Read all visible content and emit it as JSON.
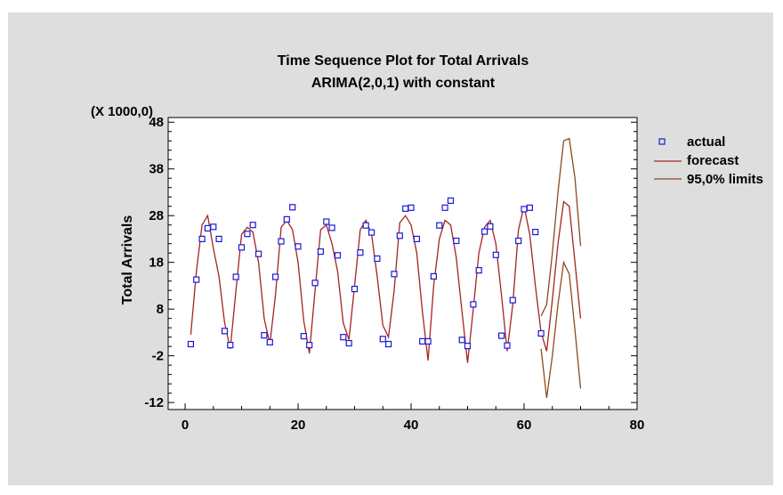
{
  "chart_data": {
    "type": "line",
    "title": "Time Sequence Plot for Total Arrivals",
    "subtitle": "ARIMA(2,0,1) with constant",
    "ylabel": "Total Arrivals",
    "y_multiplier": "(X 1000,0)",
    "xlim": [
      -3,
      80
    ],
    "ylim": [
      -13.5,
      49
    ],
    "x_ticks": [
      0,
      20,
      40,
      60,
      80
    ],
    "x_tick_labels": [
      "0",
      "20",
      "40",
      "60",
      "80"
    ],
    "y_ticks": [
      -12,
      -2,
      8,
      18,
      28,
      38,
      48
    ],
    "y_tick_labels": [
      "-12",
      "-2",
      "8",
      "18",
      "28",
      "38",
      "48"
    ],
    "legend": [
      "actual",
      "forecast",
      "95,0% limits"
    ],
    "legend_position": "right",
    "colors": {
      "actual": "#1a1ad8",
      "forecast": "#a52420",
      "limits": "#8b4a1c"
    },
    "series": [
      {
        "name": "actual",
        "x": [
          1,
          2,
          3,
          4,
          5,
          6,
          7,
          8,
          9,
          10,
          11,
          12,
          13,
          14,
          15,
          16,
          17,
          18,
          19,
          20,
          21,
          22,
          23,
          24,
          25,
          26,
          27,
          28,
          29,
          30,
          31,
          32,
          33,
          34,
          35,
          36,
          37,
          38,
          39,
          40,
          41,
          42,
          43,
          44,
          45,
          46,
          47,
          48,
          49,
          50,
          51,
          52,
          53,
          54,
          55,
          56,
          57,
          58,
          59,
          60,
          61,
          62,
          63
        ],
        "y": [
          0.5,
          14.3,
          23.0,
          25.3,
          25.6,
          23.0,
          3.3,
          0.3,
          14.9,
          21.2,
          24.1,
          26.0,
          19.8,
          2.4,
          0.9,
          14.9,
          22.5,
          27.2,
          29.8,
          21.4,
          2.2,
          0.3,
          13.6,
          20.3,
          26.7,
          25.4,
          19.5,
          2.0,
          0.7,
          12.3,
          20.1,
          25.9,
          24.4,
          18.8,
          1.6,
          0.5,
          15.5,
          23.7,
          29.5,
          29.7,
          23.0,
          1.1,
          1.1,
          15.0,
          25.9,
          29.7,
          31.2,
          22.6,
          1.4,
          0.1,
          9.0,
          16.3,
          24.6,
          25.7,
          19.6,
          2.3,
          0.2,
          9.9,
          22.6,
          29.4,
          29.7,
          24.5,
          2.8
        ]
      },
      {
        "name": "forecast",
        "x": [
          1,
          2,
          3,
          4,
          5,
          6,
          7,
          8,
          9,
          10,
          11,
          12,
          13,
          14,
          15,
          16,
          17,
          18,
          19,
          20,
          21,
          22,
          23,
          24,
          25,
          26,
          27,
          28,
          29,
          30,
          31,
          32,
          33,
          34,
          35,
          36,
          37,
          38,
          39,
          40,
          41,
          42,
          43,
          44,
          45,
          46,
          47,
          48,
          49,
          50,
          51,
          52,
          53,
          54,
          55,
          56,
          57,
          58,
          59,
          60,
          61,
          62,
          63,
          64,
          65,
          66,
          67,
          68,
          69,
          70
        ],
        "y": [
          2.5,
          16.0,
          26.0,
          28.0,
          21.0,
          15.0,
          5.0,
          -0.5,
          12.0,
          24.0,
          25.5,
          24.5,
          18.0,
          6.0,
          0.5,
          11.0,
          25.5,
          27.0,
          25.0,
          18.0,
          5.5,
          -1.5,
          12.0,
          25.0,
          26.0,
          22.0,
          16.0,
          5.0,
          1.5,
          13.0,
          25.0,
          27.0,
          24.0,
          15.0,
          4.5,
          2.0,
          12.0,
          26.5,
          28.0,
          26.0,
          20.0,
          7.5,
          -3.0,
          13.0,
          23.0,
          27.0,
          26.0,
          19.0,
          7.5,
          -3.5,
          8.0,
          20.0,
          25.5,
          27.0,
          22.0,
          11.0,
          -1.0,
          9.0,
          25.0,
          30.0,
          24.0,
          13.0,
          3.0,
          -1.0,
          10.0,
          22.0,
          31.0,
          30.0,
          18.0,
          6.0
        ]
      },
      {
        "name": "95,0% limits (upper)",
        "x": [
          63,
          64,
          65,
          66,
          67,
          68,
          69,
          70
        ],
        "y": [
          6.5,
          9.0,
          20.0,
          33.0,
          44.0,
          44.5,
          36.0,
          21.5
        ]
      },
      {
        "name": "95,0% limits (lower)",
        "x": [
          63,
          64,
          65,
          66,
          67,
          68,
          69,
          70
        ],
        "y": [
          -0.5,
          -11.0,
          -2.0,
          9.0,
          18.0,
          15.5,
          3.5,
          -9.0
        ]
      }
    ]
  }
}
